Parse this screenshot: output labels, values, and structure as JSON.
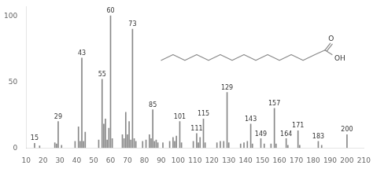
{
  "chart_data": {
    "type": "bar",
    "x": [
      15,
      18,
      27,
      28,
      29,
      31,
      39,
      41,
      42,
      43,
      44,
      45,
      53,
      55,
      56,
      57,
      58,
      59,
      60,
      61,
      67,
      68,
      69,
      70,
      71,
      72,
      73,
      74,
      75,
      79,
      81,
      83,
      84,
      85,
      86,
      87,
      88,
      91,
      95,
      97,
      98,
      99,
      101,
      102,
      109,
      111,
      112,
      113,
      115,
      116,
      123,
      125,
      127,
      129,
      130,
      137,
      139,
      141,
      143,
      144,
      149,
      151,
      155,
      157,
      158,
      164,
      165,
      171,
      172,
      183,
      185,
      200
    ],
    "values": [
      3.5,
      1.5,
      4,
      3,
      20,
      2,
      5,
      16,
      5,
      68,
      5,
      12,
      6,
      52,
      18,
      22,
      6,
      15,
      100,
      7,
      10,
      7,
      27,
      10,
      20,
      6,
      90,
      7,
      5,
      5,
      6,
      10,
      7,
      29,
      5,
      6,
      4,
      4,
      5,
      8,
      5,
      9,
      20,
      4,
      5,
      11,
      4,
      8,
      22,
      4,
      4,
      5,
      5,
      42,
      4,
      3,
      4,
      5,
      18,
      3,
      7,
      3,
      3,
      30,
      3,
      7,
      2,
      13,
      2,
      5,
      2,
      10
    ],
    "color": "#888888",
    "xlim": [
      10,
      210
    ],
    "ylim": [
      0,
      107
    ],
    "xticks": [
      10,
      20,
      30,
      40,
      50,
      60,
      70,
      80,
      90,
      100,
      110,
      120,
      130,
      140,
      150,
      160,
      170,
      180,
      190,
      200,
      210
    ],
    "yticks": [
      0,
      50,
      100
    ],
    "grid": false,
    "annotations": [
      {
        "x": 15,
        "y": 3.5,
        "text": "15"
      },
      {
        "x": 29,
        "y": 20,
        "text": "29"
      },
      {
        "x": 43,
        "y": 68,
        "text": "43"
      },
      {
        "x": 55,
        "y": 52,
        "text": "55"
      },
      {
        "x": 60,
        "y": 100,
        "text": "60"
      },
      {
        "x": 73,
        "y": 90,
        "text": "73"
      },
      {
        "x": 85,
        "y": 29,
        "text": "85"
      },
      {
        "x": 101,
        "y": 20,
        "text": "101"
      },
      {
        "x": 111,
        "y": 11,
        "text": "111"
      },
      {
        "x": 115,
        "y": 22,
        "text": "115"
      },
      {
        "x": 129,
        "y": 42,
        "text": "129"
      },
      {
        "x": 143,
        "y": 18,
        "text": "143"
      },
      {
        "x": 149,
        "y": 7,
        "text": "149"
      },
      {
        "x": 157,
        "y": 30,
        "text": "157"
      },
      {
        "x": 164,
        "y": 7,
        "text": "164"
      },
      {
        "x": 171,
        "y": 13,
        "text": "171"
      },
      {
        "x": 183,
        "y": 5,
        "text": "183"
      },
      {
        "x": 200,
        "y": 10,
        "text": "200"
      },
      {
        "text": "O"
      },
      {
        "text": "OH"
      }
    ]
  }
}
